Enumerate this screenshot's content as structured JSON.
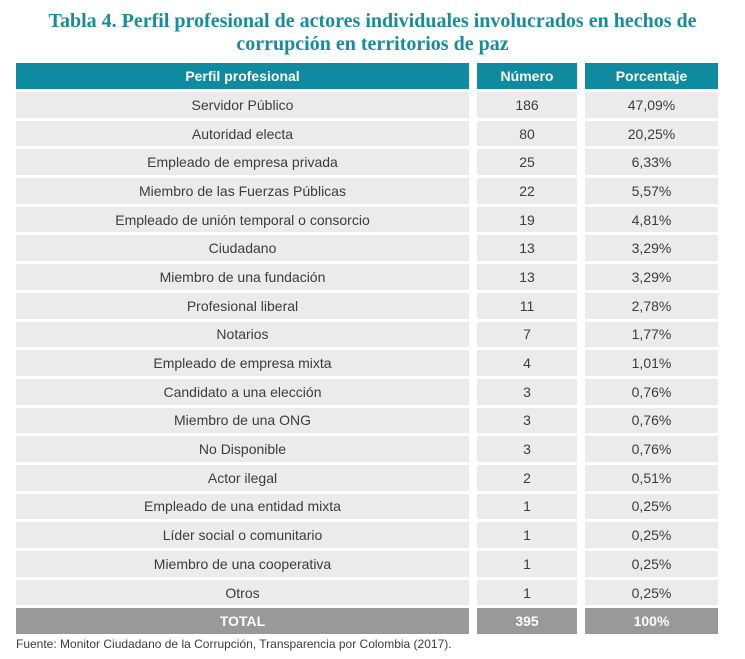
{
  "title": "Tabla 4. Perfil profesional de actores individuales involucrados en hechos de corrupción en territorios de paz",
  "columns": [
    "Perfil profesional",
    "Número",
    "Porcentaje"
  ],
  "rows": [
    {
      "perfil": "Servidor Público",
      "numero": "186",
      "porcentaje": "47,09%"
    },
    {
      "perfil": "Autoridad electa",
      "numero": "80",
      "porcentaje": "20,25%"
    },
    {
      "perfil": "Empleado de empresa privada",
      "numero": "25",
      "porcentaje": "6,33%"
    },
    {
      "perfil": "Miembro de las Fuerzas Públicas",
      "numero": "22",
      "porcentaje": "5,57%"
    },
    {
      "perfil": "Empleado de unión temporal o consorcio",
      "numero": "19",
      "porcentaje": "4,81%"
    },
    {
      "perfil": "Ciudadano",
      "numero": "13",
      "porcentaje": "3,29%"
    },
    {
      "perfil": "Miembro de una fundación",
      "numero": "13",
      "porcentaje": "3,29%"
    },
    {
      "perfil": "Profesional liberal",
      "numero": "11",
      "porcentaje": "2,78%"
    },
    {
      "perfil": "Notarios",
      "numero": "7",
      "porcentaje": "1,77%"
    },
    {
      "perfil": "Empleado de empresa mixta",
      "numero": "4",
      "porcentaje": "1,01%"
    },
    {
      "perfil": "Candidato a una elección",
      "numero": "3",
      "porcentaje": "0,76%"
    },
    {
      "perfil": "Miembro de una ONG",
      "numero": "3",
      "porcentaje": "0,76%"
    },
    {
      "perfil": "No Disponible",
      "numero": "3",
      "porcentaje": "0,76%"
    },
    {
      "perfil": "Actor ilegal",
      "numero": "2",
      "porcentaje": "0,51%"
    },
    {
      "perfil": "Empleado de una entidad mixta",
      "numero": "1",
      "porcentaje": "0,25%"
    },
    {
      "perfil": "Líder social o comunitario",
      "numero": "1",
      "porcentaje": "0,25%"
    },
    {
      "perfil": "Miembro de una cooperativa",
      "numero": "1",
      "porcentaje": "0,25%"
    },
    {
      "perfil": "Otros",
      "numero": "1",
      "porcentaje": "0,25%"
    }
  ],
  "total": {
    "label": "TOTAL",
    "numero": "395",
    "porcentaje": "100%"
  },
  "source": "Fuente: Monitor Ciudadano de la Corrupción, Transparencia por Colombia (2017).",
  "colors": {
    "title": "#1a8b9b",
    "header": "#0f8a9e",
    "row": "#ebebeb",
    "total": "#999999"
  }
}
